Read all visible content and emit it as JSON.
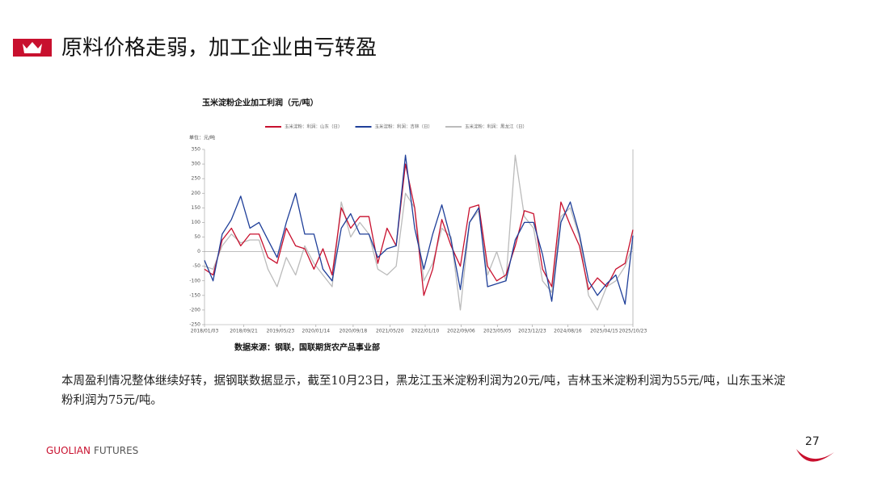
{
  "header": {
    "title": "原料价格走弱，加工企业由亏转盈"
  },
  "chart_data": {
    "type": "line",
    "title": "玉米淀粉企业加工利润（元/吨）",
    "unit_label": "单位：元/吨",
    "x": [
      "2018/01/03",
      "2018/03/01",
      "2018/05/01",
      "2018/07/01",
      "2018/09/01",
      "2018/11/01",
      "2019/01/01",
      "2019/03/01",
      "2019/05/01",
      "2019/07/01",
      "2019/09/01",
      "2019/11/01",
      "2020/01/01",
      "2020/03/01",
      "2020/05/01",
      "2020/07/01",
      "2020/09/01",
      "2020/11/01",
      "2021/01/01",
      "2021/03/01",
      "2021/05/01",
      "2021/07/01",
      "2021/09/01",
      "2021/11/01",
      "2022/01/01",
      "2022/03/01",
      "2022/05/01",
      "2022/07/01",
      "2022/09/01",
      "2022/11/01",
      "2023/01/01",
      "2023/03/01",
      "2023/05/01",
      "2023/07/01",
      "2023/09/01",
      "2023/11/01",
      "2024/01/01",
      "2024/03/01",
      "2024/05/01",
      "2024/07/01",
      "2024/09/01",
      "2024/11/01",
      "2025/01/01",
      "2025/03/01",
      "2025/05/01",
      "2025/07/01",
      "2025/09/01",
      "2025/10/23"
    ],
    "series": [
      {
        "name": "玉米淀粉：利润：山东（日）",
        "color": "#c8102e",
        "values": [
          -60,
          -80,
          40,
          80,
          20,
          60,
          60,
          -20,
          -40,
          80,
          20,
          10,
          -60,
          10,
          -80,
          150,
          80,
          120,
          120,
          -40,
          80,
          20,
          300,
          150,
          -150,
          -60,
          110,
          20,
          -50,
          150,
          160,
          -50,
          -100,
          -80,
          20,
          140,
          130,
          -60,
          -120,
          170,
          90,
          20,
          -130,
          -90,
          -120,
          -60,
          -40,
          75
        ]
      },
      {
        "name": "玉米淀粉：利润：吉林（日）",
        "color": "#1f3f99",
        "values": [
          -30,
          -100,
          60,
          110,
          190,
          80,
          100,
          40,
          -20,
          100,
          200,
          60,
          60,
          -60,
          -100,
          80,
          130,
          60,
          60,
          -20,
          10,
          20,
          330,
          80,
          -60,
          60,
          160,
          40,
          -130,
          100,
          150,
          -120,
          -110,
          -100,
          40,
          100,
          100,
          -10,
          -170,
          100,
          170,
          60,
          -100,
          -150,
          -110,
          -80,
          -180,
          55
        ]
      },
      {
        "name": "玉米淀粉：利润：黑龙江（日）",
        "color": "#bbbbbb",
        "values": [
          -50,
          -60,
          20,
          60,
          30,
          40,
          40,
          -60,
          -120,
          -20,
          -80,
          20,
          -40,
          -80,
          -120,
          170,
          50,
          100,
          60,
          -60,
          -80,
          -50,
          200,
          150,
          -100,
          -40,
          80,
          50,
          -200,
          100,
          140,
          -80,
          0,
          -100,
          330,
          120,
          80,
          -100,
          -140,
          120,
          150,
          50,
          -150,
          -200,
          -120,
          -100,
          -50,
          20
        ]
      }
    ],
    "ylim": [
      -250,
      350
    ],
    "yticks": [
      -250,
      -200,
      -150,
      -100,
      -50,
      0,
      50,
      100,
      150,
      200,
      250,
      300,
      350
    ],
    "xlim": [
      "2018/01/03",
      "2025/10/23"
    ],
    "xticks": [
      "2018/01/03",
      "2018/09/21",
      "2019/05/23",
      "2020/01/14",
      "2020/09/18",
      "2021/05/20",
      "2022/01/10",
      "2022/09/06",
      "2023/05/05",
      "2023/12/23",
      "2024/08/16",
      "2025/04/15",
      "2025/10/23"
    ],
    "source": "数据来源：钢联，国联期货农产品事业部"
  },
  "body": {
    "text": "本周盈利情况整体继续好转，据钢联数据显示，截至10月23日，黑龙江玉米淀粉利润为20元/吨，吉林玉米淀粉利润为55元/吨，山东玉米淀粉利润为75元/吨。"
  },
  "footer": {
    "brand_a": "GUOLIAN",
    "brand_b": "FUTURES",
    "page": "27"
  }
}
